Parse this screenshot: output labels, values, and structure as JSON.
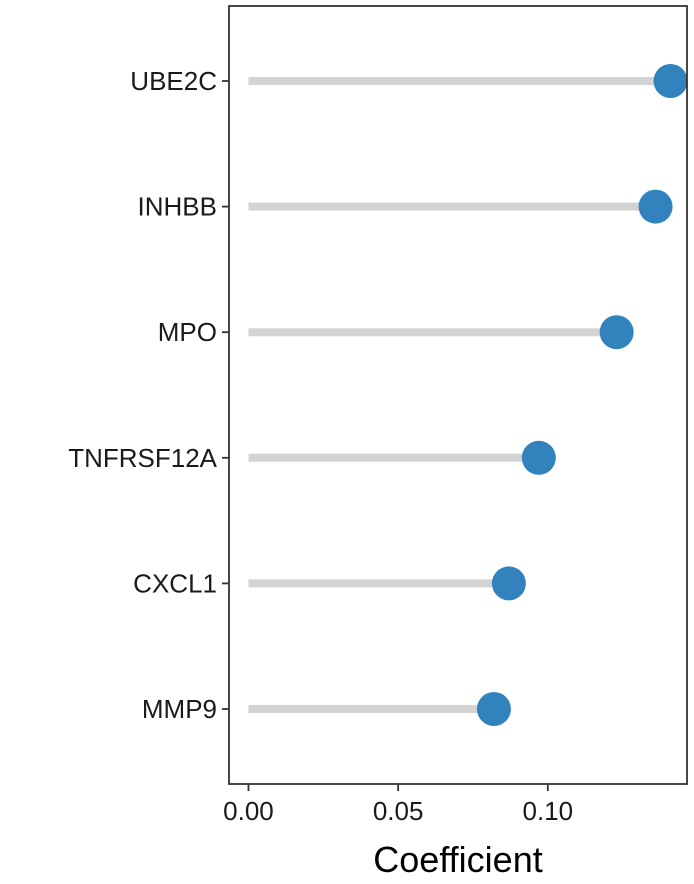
{
  "chart_data": {
    "type": "lollipop",
    "orientation": "horizontal",
    "categories": [
      "UBE2C",
      "INHBB",
      "MPO",
      "TNFRSF12A",
      "CXCL1",
      "MMP9"
    ],
    "values": [
      0.141,
      0.136,
      0.123,
      0.097,
      0.087,
      0.082
    ],
    "xlabel": "Coefficient",
    "ylabel": "",
    "title": "",
    "xlim": [
      -0.0065,
      0.1465
    ],
    "xticks": [
      0.0,
      0.05,
      0.1
    ],
    "xtick_labels": [
      "0.00",
      "0.05",
      "0.10"
    ],
    "grid": false,
    "legend": "none",
    "colors": {
      "point": "#3182bd",
      "stem": "#d3d3d3",
      "frame": "#333333"
    }
  }
}
